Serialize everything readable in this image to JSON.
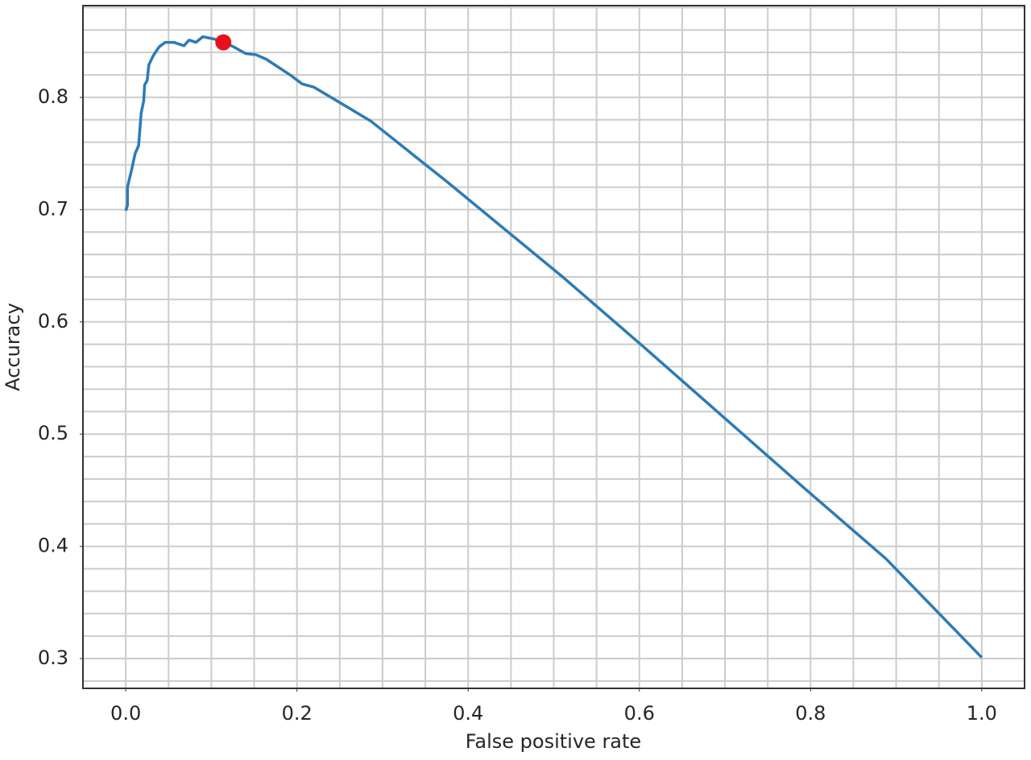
{
  "chart_data": {
    "type": "line",
    "xlabel": "False positive rate",
    "ylabel": "Accuracy",
    "xlim": [
      -0.05,
      1.05
    ],
    "ylim": [
      0.2735,
      0.8817
    ],
    "xticks": [
      {
        "value": 0,
        "label": "0.0"
      },
      0.2,
      0.4,
      0.6,
      0.8,
      {
        "value": 1,
        "label": "1.0"
      }
    ],
    "yticks": [
      0.3,
      0.4,
      0.5,
      0.6,
      0.7,
      0.8
    ],
    "x_grid_lines": [
      0,
      0.05,
      0.1,
      0.15,
      0.2,
      0.25,
      0.3,
      0.35,
      0.4,
      0.45,
      0.5,
      0.55,
      0.6,
      0.65,
      0.7,
      0.75,
      0.8,
      0.85,
      0.9,
      0.95,
      1
    ],
    "y_grid_lines": [
      0.28,
      0.3,
      0.32,
      0.34,
      0.36,
      0.38,
      0.4,
      0.42,
      0.44,
      0.46,
      0.48,
      0.5,
      0.52,
      0.54,
      0.56,
      0.58,
      0.6,
      0.62,
      0.64,
      0.66,
      0.68,
      0.7,
      0.72,
      0.74,
      0.76,
      0.78,
      0.8,
      0.82,
      0.84,
      0.86,
      0.88
    ],
    "grid": true,
    "grid_color": "#cccccc",
    "series": [
      {
        "type": "line",
        "color": "#2c7bb6",
        "x": [
          0,
          0.002,
          0.002,
          0.007,
          0.011,
          0.015,
          0.018,
          0.021,
          0.022,
          0.025,
          0.027,
          0.032,
          0.039,
          0.046,
          0.056,
          0.068,
          0.074,
          0.082,
          0.09,
          0.103,
          0.114,
          0.126,
          0.14,
          0.152,
          0.164,
          0.178,
          0.192,
          0.206,
          0.22,
          0.253,
          0.286,
          0.342,
          0.375,
          0.418,
          0.512,
          0.606,
          0.7,
          0.794,
          0.888,
          1
        ],
        "values": [
          0.699,
          0.704,
          0.72,
          0.736,
          0.75,
          0.757,
          0.786,
          0.797,
          0.811,
          0.815,
          0.829,
          0.837,
          0.845,
          0.849,
          0.849,
          0.846,
          0.851,
          0.849,
          0.854,
          0.852,
          0.849,
          0.845,
          0.839,
          0.838,
          0.834,
          0.827,
          0.82,
          0.812,
          0.809,
          0.794,
          0.779,
          0.745,
          0.725,
          0.698,
          0.639,
          0.577,
          0.514,
          0.451,
          0.389,
          0.301
        ]
      },
      {
        "type": "scatter",
        "color": "#e8101a",
        "x": [
          0.114
        ],
        "values": [
          0.849
        ]
      }
    ]
  }
}
